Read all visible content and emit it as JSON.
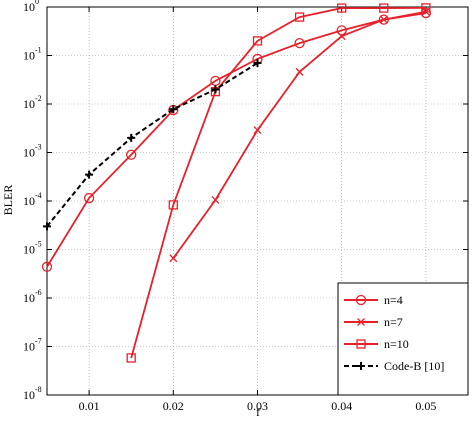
{
  "chart_data": {
    "type": "line",
    "xlabel": "f",
    "ylabel": "BLER",
    "log_y": true,
    "grid": true,
    "legend": "lower right",
    "xlim": [
      0.005,
      0.055
    ],
    "ylim": [
      1e-08,
      1
    ],
    "xticks": [
      0.01,
      0.02,
      0.03,
      0.04,
      0.05
    ],
    "yticks": [
      {
        "value": 1e-08,
        "label": "10",
        "exponent": "-8"
      },
      {
        "value": 1e-07,
        "label": "10",
        "exponent": "-7"
      },
      {
        "value": 1e-06,
        "label": "10",
        "exponent": "-6"
      },
      {
        "value": 1e-05,
        "label": "10",
        "exponent": "-5"
      },
      {
        "value": 0.0001,
        "label": "10",
        "exponent": "-4"
      },
      {
        "value": 0.001,
        "label": "10",
        "exponent": "-3"
      },
      {
        "value": 0.01,
        "label": "10",
        "exponent": "-2"
      },
      {
        "value": 0.1,
        "label": "10",
        "exponent": "-1"
      },
      {
        "value": 1,
        "label": "10",
        "exponent": "0"
      }
    ],
    "series": [
      {
        "name": "n=4",
        "color": "#e8202a",
        "marker": "circle",
        "dash": false,
        "x": [
          0.005,
          0.01,
          0.015,
          0.02,
          0.025,
          0.03,
          0.035,
          0.04,
          0.045,
          0.05
        ],
        "values": [
          4.4e-06,
          0.000115,
          0.0009,
          0.0075,
          0.03,
          0.085,
          0.18,
          0.33,
          0.55,
          0.75
        ]
      },
      {
        "name": "n=7",
        "color": "#e8202a",
        "marker": "x",
        "dash": false,
        "x": [
          0.02,
          0.025,
          0.03,
          0.035,
          0.04,
          0.045,
          0.05
        ],
        "values": [
          6.6e-06,
          0.000105,
          0.0029,
          0.046,
          0.25,
          0.55,
          0.8
        ]
      },
      {
        "name": "n=10",
        "color": "#e8202a",
        "marker": "square",
        "dash": false,
        "x": [
          0.015,
          0.02,
          0.025,
          0.03,
          0.035,
          0.04,
          0.045,
          0.05
        ],
        "values": [
          5.8e-08,
          8.3e-05,
          0.018,
          0.2,
          0.62,
          0.95,
          0.95,
          0.96
        ]
      },
      {
        "name": "Code-B [10]",
        "color": "#000000",
        "marker": "plus",
        "dash": true,
        "x": [
          0.005,
          0.01,
          0.015,
          0.02,
          0.025,
          0.03
        ],
        "values": [
          3e-05,
          0.00035,
          0.002,
          0.0078,
          0.02,
          0.07
        ]
      }
    ]
  }
}
